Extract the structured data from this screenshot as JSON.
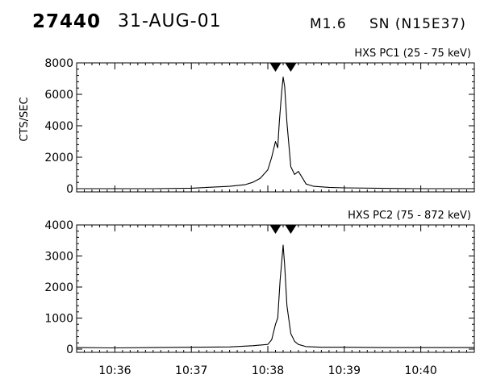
{
  "header": {
    "event_id": "27440",
    "date": "31-AUG-01",
    "goes_class": "M1.6",
    "location": "SN (N15E37)"
  },
  "chart_data": [
    {
      "type": "line",
      "panel_label": "HXS PC1 (25 - 75 keV)",
      "ylabel": "CTS/SEC",
      "ylim": [
        0,
        8000
      ],
      "yticks": [
        0,
        2000,
        4000,
        6000,
        8000
      ],
      "xlim": [
        "10:35.5",
        "10:40.7"
      ],
      "xticks": [
        "10:36",
        "10:37",
        "10:38",
        "10:39",
        "10:40"
      ],
      "marker_times": [
        "10:38.1",
        "10:38.3"
      ],
      "x": [
        "10:35.5",
        "10:36.0",
        "10:36.5",
        "10:37.0",
        "10:37.5",
        "10:37.7",
        "10:37.8",
        "10:37.9",
        "10:38.0",
        "10:38.05",
        "10:38.1",
        "10:38.13",
        "10:38.15",
        "10:38.18",
        "10:38.2",
        "10:38.22",
        "10:38.25",
        "10:38.3",
        "10:38.35",
        "10:38.4",
        "10:38.45",
        "10:38.5",
        "10:38.6",
        "10:38.8",
        "10:39.0",
        "10:39.5",
        "10:40.0",
        "10:40.7"
      ],
      "values": [
        0,
        0,
        0,
        30,
        150,
        250,
        400,
        650,
        1200,
        2000,
        3000,
        2600,
        4200,
        6100,
        7100,
        6500,
        4200,
        1400,
        900,
        1100,
        700,
        300,
        150,
        80,
        50,
        20,
        0,
        0
      ]
    },
    {
      "type": "line",
      "panel_label": "HXS PC2 (75 - 872 keV)",
      "ylabel": "",
      "ylim": [
        0,
        4000
      ],
      "yticks": [
        0,
        1000,
        2000,
        3000,
        4000
      ],
      "xlim": [
        "10:35.5",
        "10:40.7"
      ],
      "xticks": [
        "10:36",
        "10:37",
        "10:38",
        "10:39",
        "10:40"
      ],
      "marker_times": [
        "10:38.1",
        "10:38.3"
      ],
      "x": [
        "10:35.5",
        "10:36.0",
        "10:36.5",
        "10:37.0",
        "10:37.5",
        "10:37.8",
        "10:38.0",
        "10:38.05",
        "10:38.1",
        "10:38.13",
        "10:38.16",
        "10:38.2",
        "10:38.22",
        "10:38.25",
        "10:38.3",
        "10:38.35",
        "10:38.4",
        "10:38.5",
        "10:38.7",
        "10:39.0",
        "10:39.5",
        "10:40.0",
        "10:40.7"
      ],
      "values": [
        50,
        40,
        50,
        60,
        70,
        110,
        150,
        300,
        800,
        1000,
        2200,
        3350,
        2700,
        1400,
        500,
        250,
        150,
        80,
        60,
        60,
        50,
        50,
        50
      ]
    }
  ]
}
